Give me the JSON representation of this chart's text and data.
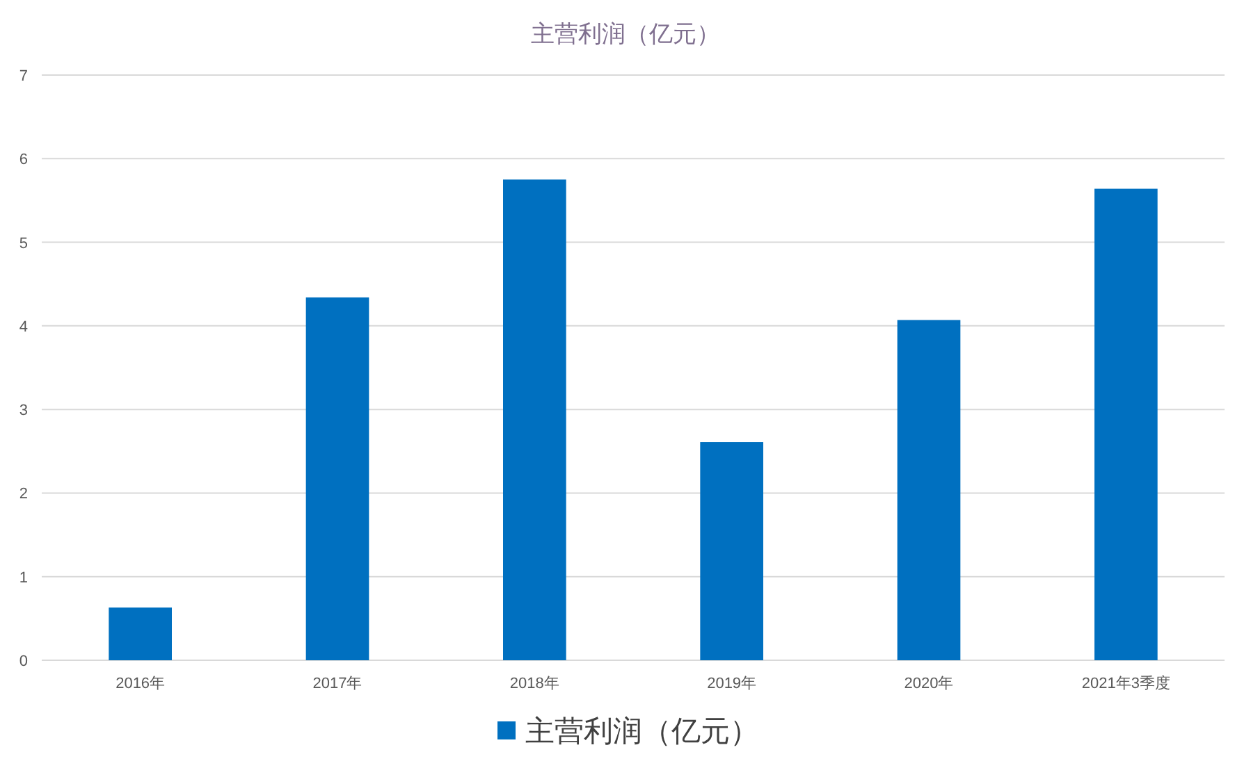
{
  "chart_data": {
    "type": "bar",
    "title": "主营利润（亿元）",
    "categories": [
      "2016年",
      "2017年",
      "2018年",
      "2019年",
      "2020年",
      "2021年3季度"
    ],
    "series": [
      {
        "name": "主营利润（亿元）",
        "color": "#0070c0",
        "values": [
          0.63,
          4.34,
          5.75,
          2.61,
          4.07,
          5.64
        ]
      }
    ],
    "ylim": [
      0,
      7
    ],
    "yticks": [
      0,
      1,
      2,
      3,
      4,
      5,
      6,
      7
    ],
    "grid": "y",
    "legend": "bottom"
  }
}
